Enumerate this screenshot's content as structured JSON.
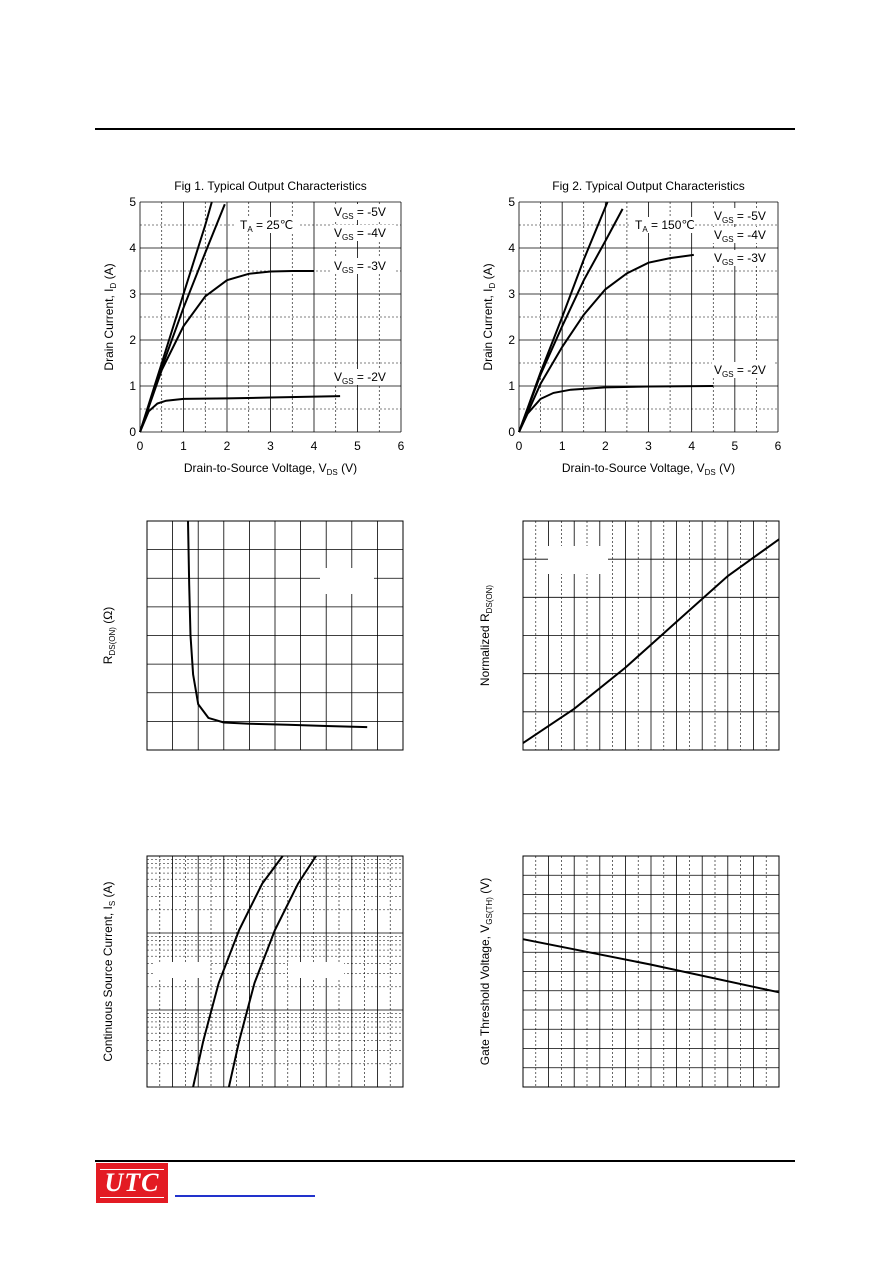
{
  "brand": {
    "logo_text": "UTC"
  },
  "footer": {
    "link_text": ""
  },
  "chart_data": [
    {
      "id": "fig1",
      "type": "line",
      "title": "Fig 1. Typical Output Characteristics",
      "xlabel": "Drain-to-Source Voltage, V",
      "xlabel_sub": "DS",
      "xlabel_unit": " (V)",
      "ylabel": "Drain Current, I",
      "ylabel_sub": "D",
      "ylabel_unit": " (A)",
      "xlim": [
        0,
        6
      ],
      "ylim": [
        0,
        5
      ],
      "xticks": [
        "0",
        "1",
        "2",
        "3",
        "4",
        "5",
        "6"
      ],
      "yticks": [
        "0",
        "1",
        "2",
        "3",
        "4",
        "5"
      ],
      "annotation": {
        "main": "T",
        "sub": "A",
        "rest": " = 25℃"
      },
      "series": [
        {
          "name": "V_GS = -5V",
          "label_main": "V",
          "label_sub": "GS",
          "label_rest": " = -5V",
          "x": [
            0,
            0.5,
            1.0,
            1.5,
            1.65
          ],
          "y": [
            0,
            1.5,
            3.0,
            4.5,
            5.0
          ]
        },
        {
          "name": "V_GS = -4V",
          "label_main": "V",
          "label_sub": "GS",
          "label_rest": " = -4V",
          "x": [
            0,
            0.5,
            1.0,
            1.5,
            1.95
          ],
          "y": [
            0,
            1.4,
            2.7,
            3.9,
            4.95
          ]
        },
        {
          "name": "V_GS = -3V",
          "label_main": "V",
          "label_sub": "GS",
          "label_rest": " = -3V",
          "x": [
            0,
            0.5,
            1.0,
            1.5,
            2.0,
            2.5,
            3.0,
            3.5,
            4.0
          ],
          "y": [
            0,
            1.35,
            2.3,
            2.95,
            3.3,
            3.44,
            3.49,
            3.5,
            3.5
          ]
        },
        {
          "name": "V_GS = -2V",
          "label_main": "V",
          "label_sub": "GS",
          "label_rest": " = -2V",
          "x": [
            0,
            0.2,
            0.4,
            0.6,
            1.0,
            2.0,
            3.0,
            4.6
          ],
          "y": [
            0,
            0.45,
            0.62,
            0.68,
            0.72,
            0.73,
            0.75,
            0.78
          ]
        }
      ]
    },
    {
      "id": "fig2",
      "type": "line",
      "title": "Fig 2. Typical Output Characteristics",
      "xlabel": "Drain-to-Source Voltage, V",
      "xlabel_sub": "DS",
      "xlabel_unit": " (V)",
      "ylabel": "Drain Current, I",
      "ylabel_sub": "D",
      "ylabel_unit": " (A)",
      "xlim": [
        0,
        6
      ],
      "ylim": [
        0,
        5
      ],
      "xticks": [
        "0",
        "1",
        "2",
        "3",
        "4",
        "5",
        "6"
      ],
      "yticks": [
        "0",
        "1",
        "2",
        "3",
        "4",
        "5"
      ],
      "annotation": {
        "main": "T",
        "sub": "A",
        "rest": " = 150℃"
      },
      "series": [
        {
          "name": "V_GS = -5V",
          "label_main": "V",
          "label_sub": "GS",
          "label_rest": " = -5V",
          "x": [
            0,
            0.5,
            1.0,
            1.5,
            2.05
          ],
          "y": [
            0,
            1.3,
            2.5,
            3.75,
            5.0
          ]
        },
        {
          "name": "V_GS = -4V",
          "label_main": "V",
          "label_sub": "GS",
          "label_rest": " = -4V",
          "x": [
            0,
            0.5,
            1.0,
            1.5,
            2.0,
            2.4
          ],
          "y": [
            0,
            1.25,
            2.3,
            3.3,
            4.15,
            4.85
          ]
        },
        {
          "name": "V_GS = -3V",
          "label_main": "V",
          "label_sub": "GS",
          "label_rest": " = -3V",
          "x": [
            0,
            0.5,
            1.0,
            1.5,
            2.0,
            2.5,
            3.0,
            3.5,
            4.05
          ],
          "y": [
            0,
            1.05,
            1.85,
            2.55,
            3.1,
            3.45,
            3.68,
            3.78,
            3.85
          ]
        },
        {
          "name": "V_GS = -2V",
          "label_main": "V",
          "label_sub": "GS",
          "label_rest": " = -2V",
          "x": [
            0,
            0.2,
            0.5,
            0.8,
            1.2,
            2.0,
            3.0,
            4.5
          ],
          "y": [
            0,
            0.4,
            0.72,
            0.85,
            0.92,
            0.97,
            0.99,
            1.0
          ]
        }
      ]
    },
    {
      "id": "fig3",
      "type": "line",
      "title": "",
      "ylabel": "R",
      "ylabel_sub": "DS(ON)",
      "ylabel_unit": " (Ω)",
      "series": [
        {
          "x": [
            0.16,
            0.165,
            0.17,
            0.18,
            0.2,
            0.24,
            0.3,
            0.4,
            0.55,
            0.7,
            0.86
          ],
          "y": [
            1.0,
            0.72,
            0.5,
            0.33,
            0.2,
            0.14,
            0.12,
            0.115,
            0.11,
            0.105,
            0.1
          ]
        }
      ]
    },
    {
      "id": "fig4",
      "type": "line",
      "title": "",
      "ylabel": "Normalized R",
      "ylabel_sub": "DS(ON)",
      "ylabel_unit": "",
      "series": [
        {
          "x": [
            0,
            0.2,
            0.4,
            0.6,
            0.8,
            1.0
          ],
          "y": [
            0.03,
            0.18,
            0.36,
            0.56,
            0.76,
            0.92
          ]
        }
      ]
    },
    {
      "id": "fig5",
      "type": "line",
      "title": "",
      "ylabel": "Continuous Source Current, I",
      "ylabel_sub": "S",
      "ylabel_unit": " (A)",
      "series": [
        {
          "x": [
            0.18,
            0.22,
            0.28,
            0.36,
            0.45,
            0.53
          ],
          "y": [
            0.0,
            0.2,
            0.45,
            0.68,
            0.88,
            1.0
          ]
        },
        {
          "x": [
            0.32,
            0.36,
            0.42,
            0.5,
            0.59,
            0.66
          ],
          "y": [
            0.0,
            0.2,
            0.45,
            0.68,
            0.88,
            1.0
          ]
        }
      ]
    },
    {
      "id": "fig6",
      "type": "line",
      "title": "",
      "ylabel": "Gate Threshold Voltage, V",
      "ylabel_sub": "GS(TH)",
      "ylabel_unit": " (V)",
      "series": [
        {
          "x": [
            0,
            0.5,
            1.0
          ],
          "y": [
            0.64,
            0.53,
            0.41
          ]
        }
      ]
    }
  ]
}
